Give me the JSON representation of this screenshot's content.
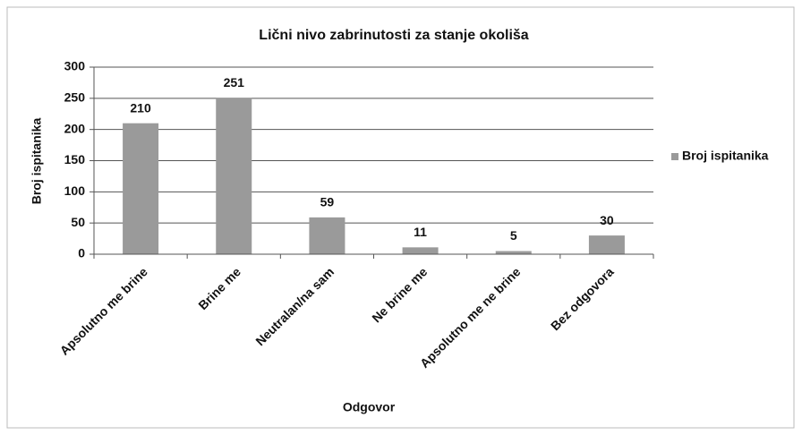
{
  "chart_data": {
    "type": "bar",
    "title": "Lični nivo zabrinutosti za stanje okoliša",
    "x_label": "Odgovor",
    "y_label": "Broj ispitanika",
    "categories": [
      "Apsolutno me brine",
      "Brine me",
      "Neutralan/na sam",
      "Ne brine me",
      "Apsolutno me ne brine",
      "Bez odgovora"
    ],
    "series": [
      {
        "name": "Broj ispitanika",
        "color": "#9a9a9a",
        "values": [
          210,
          251,
          59,
          11,
          5,
          30
        ]
      }
    ],
    "ylim": [
      0,
      300
    ],
    "yticks": [
      0,
      50,
      100,
      150,
      200,
      250,
      300
    ],
    "grid": true,
    "data_labels": true,
    "legend": "right"
  }
}
